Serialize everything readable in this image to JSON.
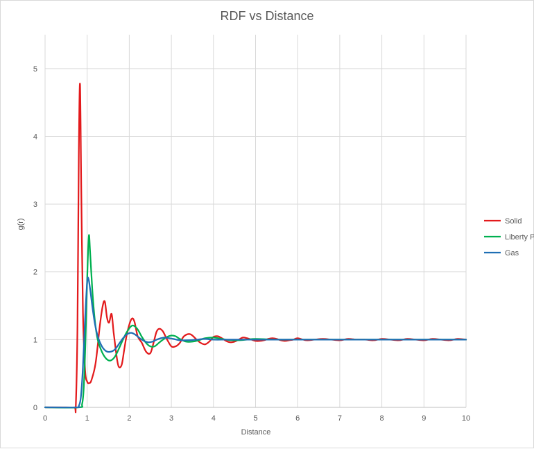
{
  "chart_data": {
    "type": "line",
    "title": "RDF vs Distance",
    "xlabel": "Distance",
    "ylabel": "g(r)",
    "xlim": [
      0,
      10
    ],
    "ylim": [
      0,
      5.5
    ],
    "x_ticks": [
      "0",
      "1",
      "2",
      "3",
      "4",
      "5",
      "6",
      "7",
      "8",
      "9",
      "10"
    ],
    "y_ticks": [
      "0",
      "1",
      "2",
      "3",
      "4",
      "5"
    ],
    "grid": true,
    "legend_position": "right",
    "series": [
      {
        "name": "Solid",
        "color": "#e31a1c",
        "x": [
          0,
          0.5,
          0.7,
          0.73,
          0.77,
          0.8,
          0.83,
          0.86,
          0.9,
          0.95,
          1.0,
          1.05,
          1.1,
          1.2,
          1.3,
          1.37,
          1.42,
          1.47,
          1.52,
          1.58,
          1.63,
          1.7,
          1.75,
          1.82,
          1.88,
          1.95,
          2.05,
          2.12,
          2.2,
          2.3,
          2.4,
          2.5,
          2.58,
          2.65,
          2.72,
          2.8,
          2.9,
          3.0,
          3.1,
          3.2,
          3.3,
          3.45,
          3.6,
          3.7,
          3.8,
          3.9,
          4.0,
          4.1,
          4.2,
          4.3,
          4.4,
          4.5,
          4.6,
          4.7,
          4.8,
          4.9,
          5.0,
          5.1,
          5.2,
          5.3,
          5.4,
          5.5,
          5.6,
          5.7,
          5.8,
          5.9,
          6.0,
          6.2,
          6.4,
          6.6,
          6.8,
          7.0,
          7.2,
          7.4,
          7.6,
          7.8,
          8.0,
          8.2,
          8.4,
          8.6,
          8.8,
          9.0,
          9.2,
          9.4,
          9.6,
          9.8,
          10.0
        ],
        "values": [
          0,
          0,
          0,
          0.02,
          1.2,
          3.7,
          4.77,
          3.2,
          1.4,
          0.55,
          0.38,
          0.36,
          0.4,
          0.65,
          1.2,
          1.5,
          1.56,
          1.33,
          1.25,
          1.38,
          1.1,
          0.75,
          0.6,
          0.63,
          0.85,
          1.1,
          1.3,
          1.27,
          1.05,
          0.95,
          0.82,
          0.8,
          0.96,
          1.12,
          1.16,
          1.12,
          1.0,
          0.9,
          0.9,
          0.95,
          1.05,
          1.08,
          1.0,
          0.95,
          0.93,
          0.97,
          1.04,
          1.05,
          1.02,
          0.98,
          0.96,
          0.97,
          1.0,
          1.03,
          1.02,
          1.0,
          0.98,
          0.98,
          0.99,
          1.01,
          1.02,
          1.01,
          0.99,
          0.98,
          0.99,
          1.0,
          1.02,
          0.99,
          1.0,
          1.01,
          1.0,
          0.99,
          1.01,
          1.0,
          1.0,
          0.99,
          1.01,
          1.0,
          0.99,
          1.01,
          1.0,
          0.99,
          1.01,
          1.0,
          0.99,
          1.01,
          1.0
        ]
      },
      {
        "name": "Liberty Placeholder",
        "color": "#00b050",
        "x": [
          0,
          0.8,
          0.88,
          0.92,
          0.96,
          1.0,
          1.04,
          1.07,
          1.12,
          1.18,
          1.25,
          1.35,
          1.45,
          1.55,
          1.65,
          1.75,
          1.85,
          1.95,
          2.05,
          2.12,
          2.2,
          2.3,
          2.4,
          2.5,
          2.6,
          2.7,
          2.8,
          2.9,
          3.0,
          3.1,
          3.2,
          3.35,
          3.5,
          3.65,
          3.8,
          4.0,
          4.2,
          4.4,
          4.6,
          4.8,
          5.0,
          5.5,
          6.0,
          6.5,
          7.0,
          7.5,
          8.0,
          8.5,
          9.0,
          9.5,
          10.0
        ],
        "values": [
          0,
          0,
          0.05,
          0.3,
          1.0,
          1.9,
          2.53,
          2.3,
          1.75,
          1.3,
          1.0,
          0.82,
          0.72,
          0.69,
          0.74,
          0.86,
          1.0,
          1.12,
          1.2,
          1.2,
          1.15,
          1.04,
          0.95,
          0.9,
          0.9,
          0.95,
          1.0,
          1.04,
          1.06,
          1.05,
          1.01,
          0.97,
          0.97,
          0.99,
          1.02,
          1.03,
          1.01,
          0.99,
          0.99,
          1.0,
          1.01,
          1.0,
          1.0,
          1.0,
          1.0,
          1.0,
          1.0,
          1.0,
          1.0,
          1.0,
          1.0
        ]
      },
      {
        "name": "Gas",
        "color": "#1f6fb4",
        "x": [
          0,
          0.75,
          0.8,
          0.85,
          0.9,
          0.95,
          1.0,
          1.03,
          1.07,
          1.12,
          1.18,
          1.25,
          1.35,
          1.45,
          1.55,
          1.65,
          1.75,
          1.85,
          1.95,
          2.05,
          2.15,
          2.25,
          2.35,
          2.45,
          2.55,
          2.65,
          2.75,
          2.85,
          2.95,
          3.05,
          3.2,
          3.4,
          3.6,
          3.8,
          4.0,
          4.3,
          4.6,
          5.0,
          5.5,
          6.0,
          6.5,
          7.0,
          7.5,
          8.0,
          8.5,
          9.0,
          9.5,
          10.0
        ],
        "values": [
          0,
          0,
          0.02,
          0.15,
          0.6,
          1.3,
          1.85,
          1.9,
          1.75,
          1.5,
          1.25,
          1.05,
          0.9,
          0.83,
          0.82,
          0.85,
          0.93,
          1.02,
          1.08,
          1.1,
          1.07,
          1.02,
          0.98,
          0.96,
          0.97,
          1.0,
          1.02,
          1.03,
          1.02,
          1.01,
          0.99,
          0.99,
          1.0,
          1.01,
          1.0,
          1.0,
          1.0,
          1.0,
          1.0,
          1.0,
          1.0,
          1.0,
          1.0,
          1.0,
          1.0,
          1.0,
          1.0,
          1.0
        ]
      }
    ]
  }
}
